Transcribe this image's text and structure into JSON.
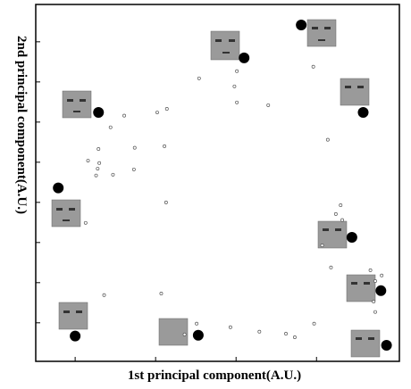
{
  "chart_data": {
    "type": "scatter",
    "x_label": "1st principal component(A.U.)",
    "y_label": "2nd principal component(A.U.)",
    "xlim": [
      -0.49,
      4.03
    ],
    "ylim": [
      -0.96,
      7.93
    ],
    "xticks": [
      0,
      1,
      2,
      3
    ],
    "yticks": [
      0,
      1,
      2,
      3,
      4,
      5,
      6,
      7
    ],
    "series": [
      {
        "color": "#000000",
        "marker": "filled",
        "x": [
          2.81,
          2.1,
          0.29,
          3.58,
          -0.21,
          3.44,
          3.8,
          0.0,
          1.53,
          3.87
        ],
        "values": [
          7.42,
          6.6,
          5.24,
          5.24,
          3.36,
          2.13,
          0.8,
          -0.33,
          -0.31,
          -0.56
        ]
      },
      {
        "color": "#555555",
        "marker": "open",
        "x": [
          2.01,
          1.98,
          1.54,
          2.01,
          2.96,
          2.4,
          1.14,
          1.02,
          0.61,
          0.44,
          0.29,
          0.74,
          1.11,
          0.16,
          0.3,
          0.28,
          0.26,
          0.47,
          0.73,
          3.14,
          1.13,
          0.13,
          3.3,
          3.24,
          3.32,
          3.07,
          3.18,
          3.67,
          3.73,
          3.81,
          3.71,
          3.73,
          0.36,
          1.07,
          1.51,
          1.93,
          2.29,
          2.62,
          2.73,
          2.97,
          1.36
        ],
        "values": [
          6.27,
          5.89,
          6.09,
          5.49,
          6.38,
          5.42,
          5.33,
          5.24,
          5.16,
          4.87,
          4.33,
          4.36,
          4.4,
          4.04,
          3.98,
          3.84,
          3.67,
          3.69,
          3.82,
          4.56,
          3.0,
          2.49,
          2.93,
          2.71,
          2.56,
          1.93,
          1.38,
          1.31,
          1.04,
          1.18,
          0.53,
          0.27,
          0.69,
          0.73,
          -0.02,
          -0.11,
          -0.22,
          -0.27,
          -0.36,
          -0.02,
          -0.29
        ]
      }
    ]
  }
}
